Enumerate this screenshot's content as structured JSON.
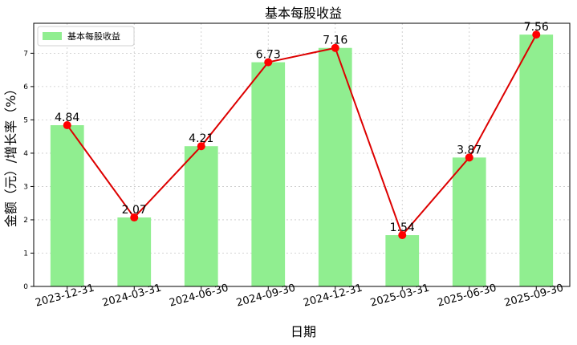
{
  "chart_data": {
    "type": "bar",
    "title": "基本每股收益",
    "xlabel": "日期",
    "ylabel": "金额（元）/增长率（%）",
    "categories": [
      "2023-12-31",
      "2024-03-31",
      "2024-06-30",
      "2024-09-30",
      "2024-12-31",
      "2025-03-31",
      "2025-06-30",
      "2025-09-30"
    ],
    "series": [
      {
        "name": "基本每股收益",
        "type": "bar",
        "values": [
          4.84,
          2.07,
          4.21,
          6.73,
          7.16,
          1.54,
          3.87,
          7.56
        ]
      },
      {
        "type": "line",
        "values": [
          4.84,
          2.07,
          4.21,
          6.73,
          7.16,
          1.54,
          3.87,
          7.56
        ]
      }
    ],
    "data_labels": [
      "4.84",
      "2.07",
      "4.21",
      "6.73",
      "7.16",
      "1.54",
      "3.87",
      "7.56"
    ],
    "yticks": [
      "0",
      "1",
      "2",
      "3",
      "4",
      "5",
      "6",
      "7"
    ],
    "ylim": [
      0,
      7.9
    ],
    "grid": true,
    "legend_position": "top-left",
    "colors": {
      "bar": "#90ee90",
      "line": "#dd0000",
      "marker": "#ff0000",
      "grid": "#c8c8c8"
    }
  }
}
